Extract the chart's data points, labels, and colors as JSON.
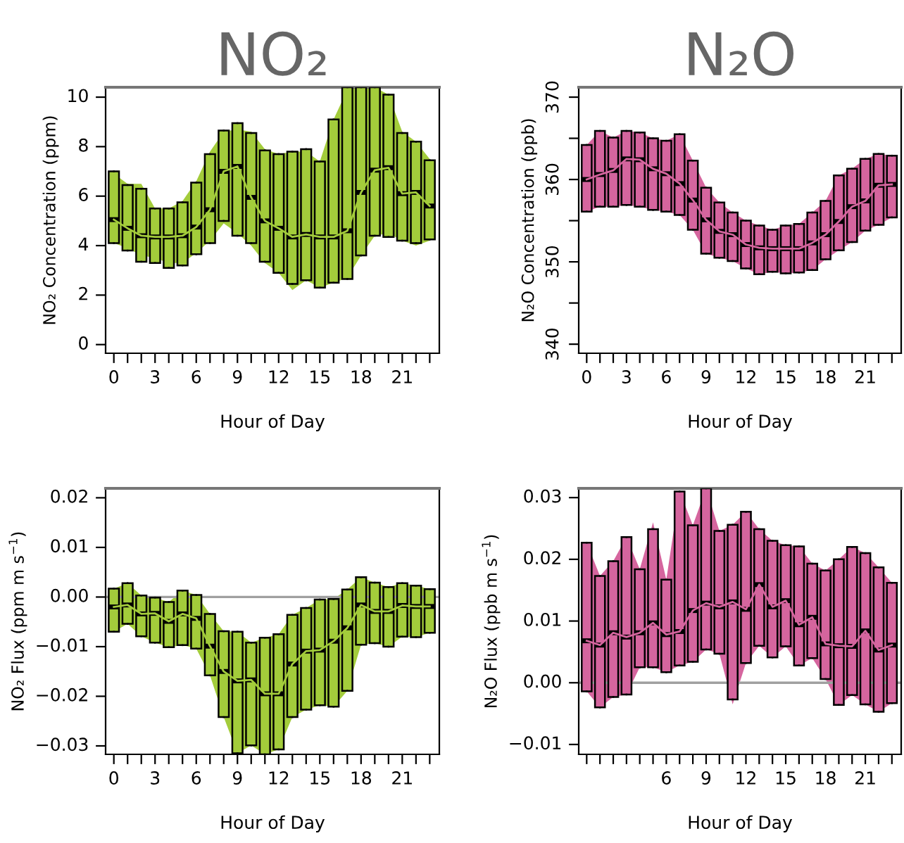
{
  "chart_data": [
    {
      "type": "box",
      "title": "NO₂",
      "xlabel": "Hour of Day",
      "ylabel": "NO₂ Concentration (ppm)",
      "categories": [
        "0",
        null,
        null,
        "3",
        null,
        null,
        "6",
        null,
        null,
        "9",
        null,
        null,
        "12",
        null,
        null,
        "15",
        null,
        null,
        "18",
        null,
        null,
        "21",
        null,
        null
      ],
      "ylim": [
        -0.35,
        10.4
      ],
      "yticks": [
        0,
        2,
        4,
        6,
        8,
        10
      ],
      "series": [
        {
          "type": "line",
          "color": "#a3cc3b",
          "values": [
            5.05,
            4.7,
            4.4,
            4.35,
            4.35,
            4.4,
            4.75,
            5.45,
            7.0,
            7.2,
            5.95,
            5.0,
            4.7,
            4.35,
            4.45,
            4.35,
            4.35,
            4.6,
            6.15,
            7.05,
            7.15,
            6.1,
            6.15,
            5.6
          ],
          "lower": [
            4.1,
            3.9,
            3.6,
            3.5,
            3.3,
            3.3,
            3.7,
            4.2,
            4.9,
            4.5,
            4.0,
            3.3,
            2.9,
            2.2,
            2.6,
            2.3,
            2.5,
            2.7,
            3.6,
            4.4,
            4.5,
            4.2,
            4.0,
            4.2
          ],
          "upper": [
            6.9,
            6.5,
            6.5,
            5.5,
            5.5,
            5.8,
            6.6,
            7.8,
            8.6,
            8.7,
            8.6,
            7.9,
            7.7,
            7.8,
            7.8,
            7.4,
            9.1,
            10.3,
            10.4,
            10.4,
            10.1,
            8.6,
            8.2,
            7.5
          ]
        },
        {
          "type": "box",
          "color": "#a3cc3b",
          "boxes": [
            {
              "low": 4.1,
              "q1": 4.1,
              "median": 5.05,
              "q3": 7.0,
              "high": 7.0
            },
            {
              "low": 3.8,
              "q1": 3.8,
              "median": 4.7,
              "q3": 6.45,
              "high": 6.45
            },
            {
              "low": 3.35,
              "q1": 3.35,
              "median": 4.4,
              "q3": 6.3,
              "high": 6.3
            },
            {
              "low": 3.3,
              "q1": 3.3,
              "median": 4.35,
              "q3": 5.5,
              "high": 5.5
            },
            {
              "low": 3.1,
              "q1": 3.1,
              "median": 4.35,
              "q3": 5.5,
              "high": 5.5
            },
            {
              "low": 3.2,
              "q1": 3.2,
              "median": 4.4,
              "q3": 5.75,
              "high": 5.75
            },
            {
              "low": 3.65,
              "q1": 3.65,
              "median": 4.75,
              "q3": 6.55,
              "high": 6.55
            },
            {
              "low": 4.1,
              "q1": 4.1,
              "median": 5.45,
              "q3": 7.7,
              "high": 7.7
            },
            {
              "low": 5.0,
              "q1": 5.0,
              "median": 7.0,
              "q3": 8.65,
              "high": 8.65
            },
            {
              "low": 4.4,
              "q1": 4.4,
              "median": 7.2,
              "q3": 8.95,
              "high": 8.95
            },
            {
              "low": 4.1,
              "q1": 4.1,
              "median": 5.95,
              "q3": 8.55,
              "high": 8.55
            },
            {
              "low": 3.35,
              "q1": 3.35,
              "median": 5.0,
              "q3": 7.85,
              "high": 7.85
            },
            {
              "low": 2.9,
              "q1": 2.9,
              "median": 4.7,
              "q3": 7.7,
              "high": 7.7
            },
            {
              "low": 2.45,
              "q1": 2.45,
              "median": 4.35,
              "q3": 7.8,
              "high": 7.8
            },
            {
              "low": 2.6,
              "q1": 2.6,
              "median": 4.45,
              "q3": 7.9,
              "high": 7.9
            },
            {
              "low": 2.3,
              "q1": 2.3,
              "median": 4.35,
              "q3": 7.4,
              "high": 7.4
            },
            {
              "low": 2.5,
              "q1": 2.5,
              "median": 4.35,
              "q3": 9.1,
              "high": 9.1
            },
            {
              "low": 2.65,
              "q1": 2.65,
              "median": 4.6,
              "q3": 10.4,
              "high": 10.4
            },
            {
              "low": 3.6,
              "q1": 3.6,
              "median": 6.15,
              "q3": 10.4,
              "high": 10.4
            },
            {
              "low": 4.4,
              "q1": 4.4,
              "median": 7.05,
              "q3": 10.4,
              "high": 10.4
            },
            {
              "low": 4.35,
              "q1": 4.35,
              "median": 7.15,
              "q3": 10.1,
              "high": 10.1
            },
            {
              "low": 4.2,
              "q1": 4.2,
              "median": 6.1,
              "q3": 8.55,
              "high": 8.55
            },
            {
              "low": 4.1,
              "q1": 4.1,
              "median": 6.15,
              "q3": 8.2,
              "high": 8.2
            },
            {
              "low": 4.25,
              "q1": 4.25,
              "median": 5.6,
              "q3": 7.45,
              "high": 7.45
            }
          ]
        }
      ]
    },
    {
      "type": "box",
      "title": "N₂O",
      "xlabel": "Hour of Day",
      "ylabel": "N₂O Concentration (ppb)",
      "categories": [
        "0",
        null,
        null,
        "3",
        null,
        null,
        "6",
        null,
        null,
        "9",
        null,
        null,
        "12",
        null,
        null,
        "15",
        null,
        null,
        "18",
        null,
        null,
        "21",
        null,
        null
      ],
      "ylim": [
        338.9,
        371.2
      ],
      "yticks": [
        340,
        {
          "value": 345,
          "label": null
        },
        350,
        {
          "value": 355,
          "label": null
        },
        360,
        {
          "value": 365,
          "label": null
        },
        370
      ],
      "series": [
        {
          "type": "line",
          "color": "#d5659e",
          "values": [
            360.0,
            360.6,
            361.1,
            362.5,
            362.4,
            361.3,
            360.7,
            359.5,
            357.5,
            355.1,
            353.7,
            353.3,
            352.1,
            351.7,
            351.6,
            351.6,
            351.6,
            352.3,
            353.3,
            354.9,
            356.7,
            357.4,
            359.3,
            359.4
          ],
          "lower": [
            356.1,
            356.7,
            356.7,
            356.9,
            356.7,
            356.3,
            356.1,
            355.7,
            353.9,
            351.0,
            350.5,
            350.1,
            349.2,
            348.5,
            348.8,
            348.6,
            348.7,
            349.0,
            350.3,
            351.4,
            352.4,
            353.8,
            354.5,
            355.4
          ],
          "upper": [
            364.2,
            365.9,
            365.1,
            365.9,
            365.7,
            365.0,
            364.7,
            365.5,
            362.3,
            359.0,
            357.2,
            356.0,
            355.0,
            354.4,
            353.9,
            354.4,
            354.6,
            356.0,
            357.4,
            360.5,
            361.3,
            362.5,
            363.1,
            362.9
          ]
        },
        {
          "type": "box",
          "color": "#d5659e",
          "boxes": [
            {
              "low": 356.1,
              "q1": 356.1,
              "median": 360.0,
              "q3": 364.2,
              "high": 364.2
            },
            {
              "low": 356.7,
              "q1": 356.7,
              "median": 360.6,
              "q3": 365.9,
              "high": 365.9
            },
            {
              "low": 356.7,
              "q1": 356.7,
              "median": 361.1,
              "q3": 365.1,
              "high": 365.1
            },
            {
              "low": 356.9,
              "q1": 356.9,
              "median": 362.5,
              "q3": 365.9,
              "high": 365.9
            },
            {
              "low": 356.7,
              "q1": 356.7,
              "median": 362.4,
              "q3": 365.7,
              "high": 365.7
            },
            {
              "low": 356.3,
              "q1": 356.3,
              "median": 361.3,
              "q3": 365.0,
              "high": 365.0
            },
            {
              "low": 356.1,
              "q1": 356.1,
              "median": 360.7,
              "q3": 364.7,
              "high": 364.7
            },
            {
              "low": 355.7,
              "q1": 355.7,
              "median": 359.5,
              "q3": 365.5,
              "high": 365.5
            },
            {
              "low": 353.9,
              "q1": 353.9,
              "median": 357.5,
              "q3": 362.3,
              "high": 362.3
            },
            {
              "low": 351.0,
              "q1": 351.0,
              "median": 355.1,
              "q3": 359.0,
              "high": 359.0
            },
            {
              "low": 350.5,
              "q1": 350.5,
              "median": 353.7,
              "q3": 357.2,
              "high": 357.2
            },
            {
              "low": 350.1,
              "q1": 350.1,
              "median": 353.3,
              "q3": 356.0,
              "high": 356.0
            },
            {
              "low": 349.2,
              "q1": 349.2,
              "median": 352.1,
              "q3": 355.0,
              "high": 355.0
            },
            {
              "low": 348.5,
              "q1": 348.5,
              "median": 351.7,
              "q3": 354.4,
              "high": 354.4
            },
            {
              "low": 348.8,
              "q1": 348.8,
              "median": 351.6,
              "q3": 353.9,
              "high": 353.9
            },
            {
              "low": 348.6,
              "q1": 348.6,
              "median": 351.6,
              "q3": 354.4,
              "high": 354.4
            },
            {
              "low": 348.7,
              "q1": 348.7,
              "median": 351.6,
              "q3": 354.6,
              "high": 354.6
            },
            {
              "low": 349.0,
              "q1": 349.0,
              "median": 352.3,
              "q3": 356.0,
              "high": 356.0
            },
            {
              "low": 350.3,
              "q1": 350.3,
              "median": 353.3,
              "q3": 357.4,
              "high": 357.4
            },
            {
              "low": 351.4,
              "q1": 351.4,
              "median": 354.9,
              "q3": 360.5,
              "high": 360.5
            },
            {
              "low": 352.4,
              "q1": 352.4,
              "median": 356.7,
              "q3": 361.3,
              "high": 361.3
            },
            {
              "low": 353.8,
              "q1": 353.8,
              "median": 357.4,
              "q3": 362.5,
              "high": 362.5
            },
            {
              "low": 354.5,
              "q1": 354.5,
              "median": 359.3,
              "q3": 363.1,
              "high": 363.1
            },
            {
              "low": 355.4,
              "q1": 355.4,
              "median": 359.4,
              "q3": 362.9,
              "high": 362.9
            }
          ]
        }
      ]
    },
    {
      "type": "box",
      "xlabel": "Hour of Day",
      "ylabel": "NO₂ Flux (ppm m s$^{−1}$)",
      "categories": [
        "0",
        null,
        null,
        "3",
        null,
        null,
        "6",
        null,
        null,
        "9",
        null,
        null,
        "12",
        null,
        null,
        "15",
        null,
        null,
        "18",
        null,
        null,
        "21",
        null,
        null
      ],
      "ylim": [
        -0.0317,
        0.0219
      ],
      "yticks": [
        {
          "value": -0.03,
          "label": "−0.03"
        },
        {
          "value": -0.02,
          "label": "−0.02"
        },
        {
          "value": -0.01,
          "label": "−0.01"
        },
        {
          "value": 0,
          "label": "0.00"
        },
        {
          "value": 0.01,
          "label": "0.01"
        },
        {
          "value": 0.02,
          "label": "0.02"
        }
      ],
      "ref_lines": [
        {
          "axis": "y",
          "value": 0,
          "color": "#a0a0a0"
        }
      ],
      "series": [
        {
          "type": "line",
          "color": "#a3cc3b",
          "values": [
            -0.002,
            -0.0016,
            -0.0034,
            -0.0033,
            -0.0049,
            -0.0034,
            -0.0043,
            -0.0099,
            -0.015,
            -0.0169,
            -0.0167,
            -0.0195,
            -0.0195,
            -0.0135,
            -0.0109,
            -0.0107,
            -0.0089,
            -0.0062,
            -0.0016,
            -0.0029,
            -0.0029,
            -0.0017,
            -0.0019,
            -0.0019
          ],
          "lower": [
            -0.007,
            -0.0054,
            -0.0079,
            -0.0092,
            -0.0101,
            -0.0097,
            -0.0104,
            -0.0158,
            -0.0242,
            -0.0315,
            -0.0299,
            -0.0317,
            -0.0307,
            -0.0242,
            -0.0227,
            -0.0218,
            -0.0221,
            -0.0189,
            -0.0096,
            -0.0093,
            -0.01,
            -0.008,
            -0.0081,
            -0.0072
          ],
          "upper": [
            0.0017,
            0.0028,
            0.0003,
            -0.0001,
            -0.001,
            0.0013,
            0.0004,
            -0.0034,
            -0.0069,
            -0.007,
            -0.0092,
            -0.0082,
            -0.0075,
            -0.0036,
            -0.0022,
            -0.0005,
            -0.0004,
            0.0015,
            0.004,
            0.0029,
            0.002,
            0.0028,
            0.0023,
            0.0016
          ]
        },
        {
          "type": "box",
          "color": "#a3cc3b",
          "boxes": [
            {
              "low": -0.007,
              "q1": -0.007,
              "median": -0.002,
              "q3": 0.0017,
              "high": 0.0017
            },
            {
              "low": -0.0054,
              "q1": -0.0054,
              "median": -0.0016,
              "q3": 0.0028,
              "high": 0.0028
            },
            {
              "low": -0.0079,
              "q1": -0.0079,
              "median": -0.0034,
              "q3": 0.0003,
              "high": 0.0003
            },
            {
              "low": -0.0092,
              "q1": -0.0092,
              "median": -0.0033,
              "q3": -0.0001,
              "high": -0.0001
            },
            {
              "low": -0.0101,
              "q1": -0.0101,
              "median": -0.0049,
              "q3": -0.001,
              "high": -0.001
            },
            {
              "low": -0.0097,
              "q1": -0.0097,
              "median": -0.0034,
              "q3": 0.0013,
              "high": 0.0013
            },
            {
              "low": -0.0104,
              "q1": -0.0104,
              "median": -0.0043,
              "q3": 0.0004,
              "high": 0.0004
            },
            {
              "low": -0.0158,
              "q1": -0.0158,
              "median": -0.0099,
              "q3": -0.0034,
              "high": -0.0034
            },
            {
              "low": -0.0242,
              "q1": -0.0242,
              "median": -0.015,
              "q3": -0.0069,
              "high": -0.0069
            },
            {
              "low": -0.0315,
              "q1": -0.0315,
              "median": -0.0169,
              "q3": -0.007,
              "high": -0.007
            },
            {
              "low": -0.0299,
              "q1": -0.0299,
              "median": -0.0167,
              "q3": -0.0092,
              "high": -0.0092
            },
            {
              "low": -0.0317,
              "q1": -0.0317,
              "median": -0.0195,
              "q3": -0.0082,
              "high": -0.0082
            },
            {
              "low": -0.0307,
              "q1": -0.0307,
              "median": -0.0195,
              "q3": -0.0075,
              "high": -0.0075
            },
            {
              "low": -0.0242,
              "q1": -0.0242,
              "median": -0.0135,
              "q3": -0.0036,
              "high": -0.0036
            },
            {
              "low": -0.0227,
              "q1": -0.0227,
              "median": -0.0109,
              "q3": -0.0022,
              "high": -0.0022
            },
            {
              "low": -0.0218,
              "q1": -0.0218,
              "median": -0.0107,
              "q3": -0.0005,
              "high": -0.0005
            },
            {
              "low": -0.0221,
              "q1": -0.0221,
              "median": -0.0089,
              "q3": -0.0004,
              "high": -0.0004
            },
            {
              "low": -0.0189,
              "q1": -0.0189,
              "median": -0.0062,
              "q3": 0.0015,
              "high": 0.0015
            },
            {
              "low": -0.0096,
              "q1": -0.0096,
              "median": -0.0016,
              "q3": 0.004,
              "high": 0.004
            },
            {
              "low": -0.0093,
              "q1": -0.0093,
              "median": -0.0029,
              "q3": 0.0029,
              "high": 0.0029
            },
            {
              "low": -0.01,
              "q1": -0.01,
              "median": -0.0029,
              "q3": 0.002,
              "high": 0.002
            },
            {
              "low": -0.008,
              "q1": -0.008,
              "median": -0.0017,
              "q3": 0.0028,
              "high": 0.0028
            },
            {
              "low": -0.0081,
              "q1": -0.0081,
              "median": -0.0019,
              "q3": 0.0023,
              "high": 0.0023
            },
            {
              "low": -0.0072,
              "q1": -0.0072,
              "median": -0.0019,
              "q3": 0.0016,
              "high": 0.0016
            }
          ]
        }
      ]
    },
    {
      "type": "box",
      "xlabel": "Hour of Day",
      "ylabel": "N₂O Flux (ppb m s$^{−1}$)",
      "categories": [
        null,
        null,
        null,
        null,
        null,
        null,
        "6",
        null,
        null,
        "9",
        null,
        null,
        "12",
        null,
        null,
        "15",
        null,
        null,
        "18",
        null,
        null,
        "21",
        null,
        null
      ],
      "ylim": [
        -0.0116,
        0.0315
      ],
      "yticks": [
        {
          "value": -0.01,
          "label": "−0.01"
        },
        {
          "value": 0,
          "label": "0.00"
        },
        {
          "value": 0.01,
          "label": "0.01"
        },
        {
          "value": 0.02,
          "label": "0.02"
        },
        {
          "value": 0.03,
          "label": "0.03"
        }
      ],
      "ref_lines": [
        {
          "axis": "y",
          "value": 0,
          "color": "#a0a0a0"
        }
      ],
      "series": [
        {
          "type": "line",
          "color": "#d5659e",
          "values": [
            0.0068,
            0.0061,
            0.0081,
            0.0074,
            0.0081,
            0.0097,
            0.0078,
            0.0083,
            0.0117,
            0.0129,
            0.0123,
            0.0131,
            0.0119,
            0.0159,
            0.0123,
            0.0133,
            0.0094,
            0.0106,
            0.0063,
            0.006,
            0.0059,
            0.0084,
            0.0053,
            0.0061
          ],
          "lower": [
            -0.0014,
            -0.004,
            -0.0023,
            -0.0019,
            0.0025,
            0.0025,
            0.0017,
            0.0028,
            0.0034,
            0.0054,
            0.0047,
            -0.0035,
            0.0032,
            0.006,
            0.0041,
            0.0059,
            0.0028,
            0.004,
            0.0006,
            -0.0036,
            -0.002,
            -0.0035,
            -0.0047,
            -0.0033
          ],
          "upper": [
            0.0227,
            0.0173,
            0.0197,
            0.0236,
            0.0184,
            0.026,
            0.0167,
            0.031,
            0.0255,
            0.0315,
            0.0246,
            0.0256,
            0.0277,
            0.0249,
            0.023,
            0.0223,
            0.0221,
            0.0193,
            0.0182,
            0.02,
            0.022,
            0.021,
            0.0187,
            0.0162
          ]
        },
        {
          "type": "box",
          "color": "#d5659e",
          "boxes": [
            {
              "low": -0.0014,
              "q1": -0.0014,
              "median": 0.0068,
              "q3": 0.0227,
              "high": 0.0227
            },
            {
              "low": -0.004,
              "q1": -0.004,
              "median": 0.0061,
              "q3": 0.0173,
              "high": 0.0173
            },
            {
              "low": -0.0023,
              "q1": -0.0023,
              "median": 0.0081,
              "q3": 0.0197,
              "high": 0.0197
            },
            {
              "low": -0.0019,
              "q1": -0.0019,
              "median": 0.0074,
              "q3": 0.0236,
              "high": 0.0236
            },
            {
              "low": 0.0025,
              "q1": 0.0025,
              "median": 0.0081,
              "q3": 0.0184,
              "high": 0.0184
            },
            {
              "low": 0.0025,
              "q1": 0.0025,
              "median": 0.0097,
              "q3": 0.0249,
              "high": 0.0249
            },
            {
              "low": 0.0017,
              "q1": 0.0017,
              "median": 0.0078,
              "q3": 0.0167,
              "high": 0.0167
            },
            {
              "low": 0.0028,
              "q1": 0.0028,
              "median": 0.0083,
              "q3": 0.031,
              "high": 0.031
            },
            {
              "low": 0.0034,
              "q1": 0.0034,
              "median": 0.0117,
              "q3": 0.0255,
              "high": 0.0255
            },
            {
              "low": 0.0054,
              "q1": 0.0054,
              "median": 0.0129,
              "q3": 0.0315,
              "high": 0.0315
            },
            {
              "low": 0.0047,
              "q1": 0.0047,
              "median": 0.0123,
              "q3": 0.0246,
              "high": 0.0246
            },
            {
              "low": -0.0027,
              "q1": -0.0027,
              "median": 0.0131,
              "q3": 0.0256,
              "high": 0.0256
            },
            {
              "low": 0.0032,
              "q1": 0.0032,
              "median": 0.0119,
              "q3": 0.0277,
              "high": 0.0277
            },
            {
              "low": 0.006,
              "q1": 0.006,
              "median": 0.0159,
              "q3": 0.0249,
              "high": 0.0249
            },
            {
              "low": 0.0041,
              "q1": 0.0041,
              "median": 0.0123,
              "q3": 0.023,
              "high": 0.023
            },
            {
              "low": 0.0059,
              "q1": 0.0059,
              "median": 0.0133,
              "q3": 0.0223,
              "high": 0.0223
            },
            {
              "low": 0.0028,
              "q1": 0.0028,
              "median": 0.0094,
              "q3": 0.0221,
              "high": 0.0221
            },
            {
              "low": 0.004,
              "q1": 0.004,
              "median": 0.0106,
              "q3": 0.0193,
              "high": 0.0193
            },
            {
              "low": 0.0006,
              "q1": 0.0006,
              "median": 0.0063,
              "q3": 0.0182,
              "high": 0.0182
            },
            {
              "low": -0.0036,
              "q1": -0.0036,
              "median": 0.006,
              "q3": 0.02,
              "high": 0.02
            },
            {
              "low": -0.002,
              "q1": -0.002,
              "median": 0.0059,
              "q3": 0.022,
              "high": 0.022
            },
            {
              "low": -0.0035,
              "q1": -0.0035,
              "median": 0.0084,
              "q3": 0.021,
              "high": 0.021
            },
            {
              "low": -0.0047,
              "q1": -0.0047,
              "median": 0.0053,
              "q3": 0.0187,
              "high": 0.0187
            },
            {
              "low": -0.0033,
              "q1": -0.0033,
              "median": 0.0061,
              "q3": 0.0162,
              "high": 0.0162
            }
          ]
        }
      ]
    }
  ]
}
